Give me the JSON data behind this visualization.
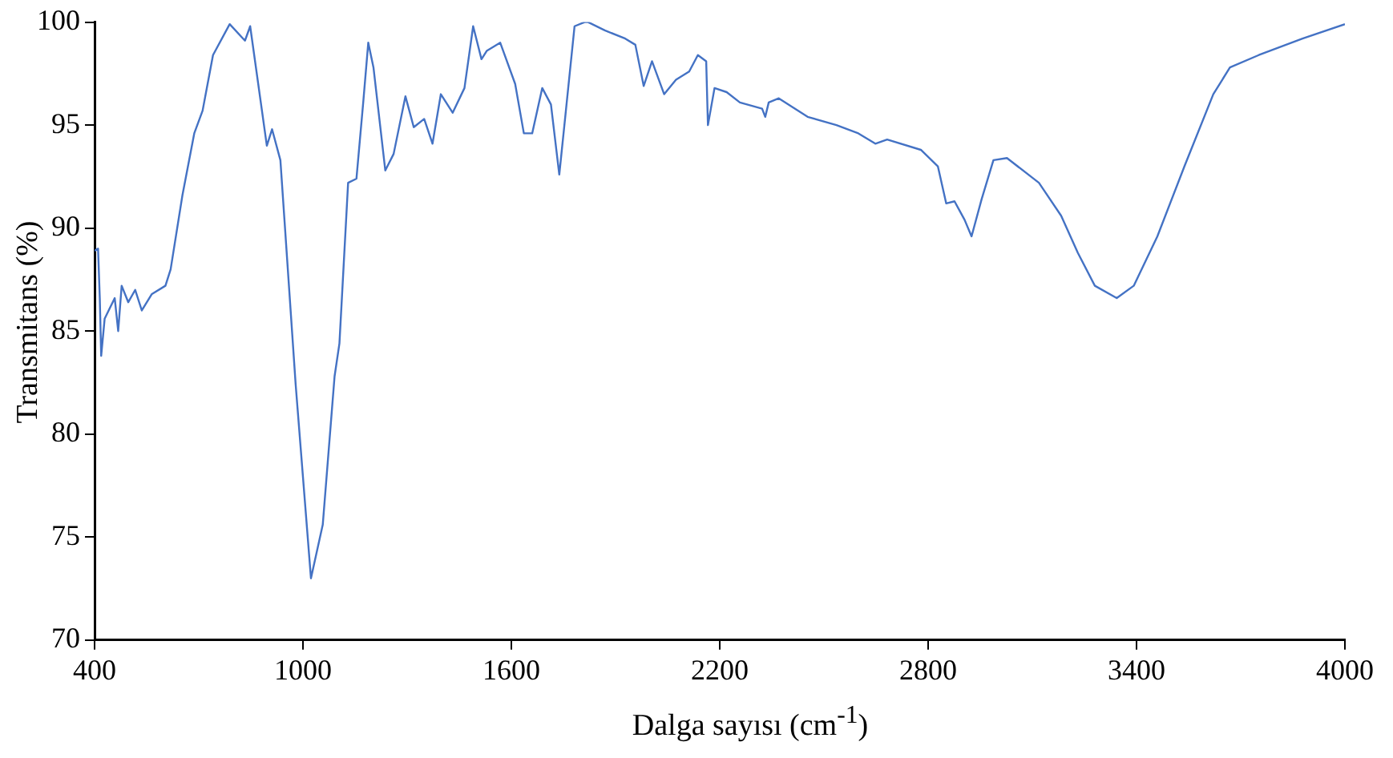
{
  "chart_data": {
    "type": "line",
    "xlabel": "Dalga sayısı (cm$^{-1}$)",
    "ylabel": "Transmitans (%)",
    "x": [
      400,
      410,
      415,
      419,
      429,
      458,
      468,
      478,
      497,
      517,
      536,
      565,
      604,
      619,
      653,
      687,
      711,
      741,
      789,
      833,
      848,
      896,
      911,
      935,
      979,
      1023,
      1057,
      1091,
      1105,
      1130,
      1154,
      1174,
      1188,
      1203,
      1237,
      1261,
      1295,
      1319,
      1349,
      1373,
      1397,
      1431,
      1465,
      1490,
      1514,
      1529,
      1568,
      1611,
      1636,
      1660,
      1689,
      1714,
      1738,
      1757,
      1782,
      1811,
      1821,
      1869,
      1928,
      1957,
      1981,
      2005,
      2040,
      2074,
      2112,
      2137,
      2161,
      2166,
      2185,
      2220,
      2258,
      2322,
      2331,
      2341,
      2370,
      2453,
      2536,
      2599,
      2648,
      2682,
      2779,
      2828,
      2852,
      2876,
      2905,
      2925,
      2954,
      2988,
      3027,
      3119,
      3183,
      3231,
      3280,
      3343,
      3392,
      3460,
      3538,
      3621,
      3669,
      3752,
      3878,
      4000
    ],
    "series": [
      {
        "color": "#4472c4",
        "values": [
          88.9,
          89.0,
          86.6,
          83.8,
          85.6,
          86.6,
          85.0,
          87.2,
          86.4,
          87.0,
          86.0,
          86.8,
          87.2,
          88.0,
          91.6,
          94.6,
          95.7,
          98.4,
          99.9,
          99.1,
          99.8,
          94.0,
          94.8,
          93.3,
          82.4,
          73.0,
          75.6,
          82.8,
          84.4,
          92.2,
          92.4,
          96.2,
          99.0,
          97.8,
          92.8,
          93.6,
          96.4,
          94.9,
          95.3,
          94.1,
          96.5,
          95.6,
          96.8,
          99.8,
          98.2,
          98.6,
          99.0,
          97.0,
          94.6,
          94.6,
          96.8,
          96.0,
          92.6,
          95.7,
          99.8,
          100.0,
          100.0,
          99.6,
          99.2,
          98.9,
          96.9,
          98.1,
          96.5,
          97.2,
          97.6,
          98.4,
          98.1,
          95.0,
          96.8,
          96.6,
          96.1,
          95.8,
          95.4,
          96.1,
          96.3,
          95.4,
          95.0,
          94.6,
          94.1,
          94.3,
          93.8,
          93.0,
          91.2,
          91.3,
          90.4,
          89.6,
          91.4,
          93.3,
          93.4,
          92.2,
          90.6,
          88.8,
          87.2,
          86.6,
          87.2,
          89.6,
          93.0,
          96.5,
          97.8,
          98.4,
          99.2,
          99.9
        ]
      }
    ],
    "xlim": [
      400,
      4000
    ],
    "xticks": [
      400,
      1000,
      1600,
      2200,
      2800,
      3400,
      4000
    ],
    "ylim": [
      70,
      100
    ],
    "yticks": [
      70,
      75,
      80,
      85,
      90,
      95,
      100
    ],
    "grid": false,
    "legend": false,
    "marker": "none",
    "line_style": "solid"
  }
}
